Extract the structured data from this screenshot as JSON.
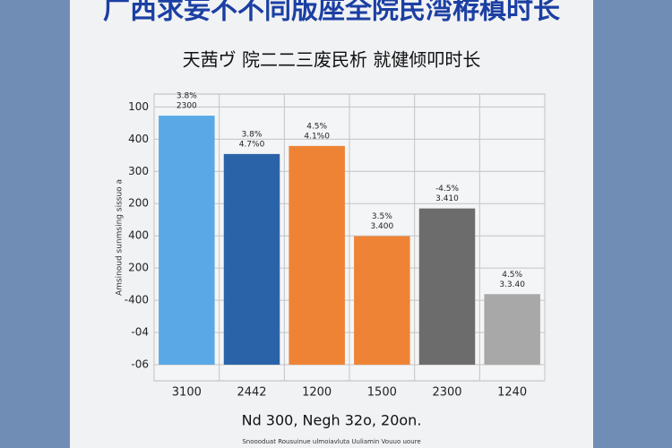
{
  "chart_data": {
    "type": "bar",
    "title": "广西求妄不不同版座全院民湾栫稹时长",
    "subtitle": "天茜ヴ 院二二三废民析 就健倾叩时长",
    "y_label": "Amsinoud sunmsing sissuo a",
    "footer": "Nd 300, Negh 32o, 20on.",
    "source": "Snoooduat Rousuinue ulmoiavluta Uuliamin Vouuo uoure",
    "categories": [
      "3100",
      "2442",
      "1200",
      "1500",
      "2300",
      "1240"
    ],
    "series": [
      {
        "name": null,
        "values": [
          7.73,
          6.54,
          6.79,
          3.99,
          4.85,
          2.19
        ],
        "colors": [
          "#5aa9e6",
          "#2b63a8",
          "#ee8336",
          "#ee8336",
          "#6c6c6c",
          "#a8a8a8"
        ]
      }
    ],
    "annotations": [
      [
        "3.8%",
        "2300"
      ],
      [
        "3.8%",
        "4.7%0"
      ],
      [
        "4.5%",
        "4.1%0"
      ],
      [
        "3.5%",
        "3.400"
      ],
      [
        "-4.5%",
        "3.410"
      ],
      [
        "4.5%",
        "3.3.40"
      ]
    ],
    "ylim": [
      -0.5,
      8.4
    ],
    "yticks": [
      {
        "value": 8,
        "label": "100"
      },
      {
        "value": 7,
        "label": "400"
      },
      {
        "value": 6,
        "label": "300"
      },
      {
        "value": 5,
        "label": "200"
      },
      {
        "value": 4,
        "label": "400"
      },
      {
        "value": 3,
        "label": "200"
      },
      {
        "value": 2,
        "label": "-400"
      },
      {
        "value": 1,
        "label": "-04"
      },
      {
        "value": 0,
        "label": "-06"
      }
    ],
    "grid": true
  }
}
